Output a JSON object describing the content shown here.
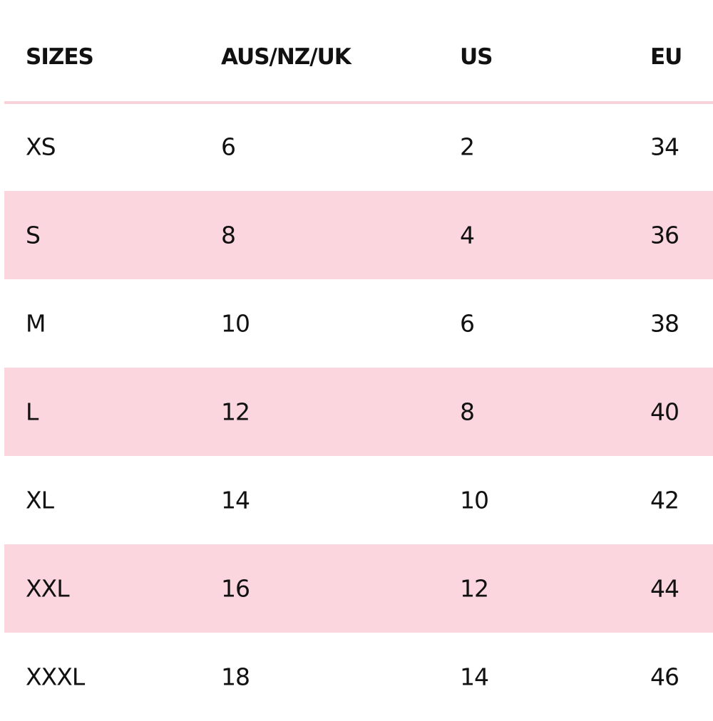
{
  "table": {
    "headers": [
      "SIZES",
      "AUS/NZ/UK",
      "US",
      "EU"
    ],
    "rows": [
      [
        "XS",
        "6",
        "2",
        "34"
      ],
      [
        "S",
        "8",
        "4",
        "36"
      ],
      [
        "M",
        "10",
        "6",
        "38"
      ],
      [
        "L",
        "12",
        "8",
        "40"
      ],
      [
        "XL",
        "14",
        "10",
        "42"
      ],
      [
        "XXL",
        "16",
        "12",
        "44"
      ],
      [
        "XXXL",
        "18",
        "14",
        "46"
      ]
    ],
    "stripe_color": "#fbd6de"
  }
}
